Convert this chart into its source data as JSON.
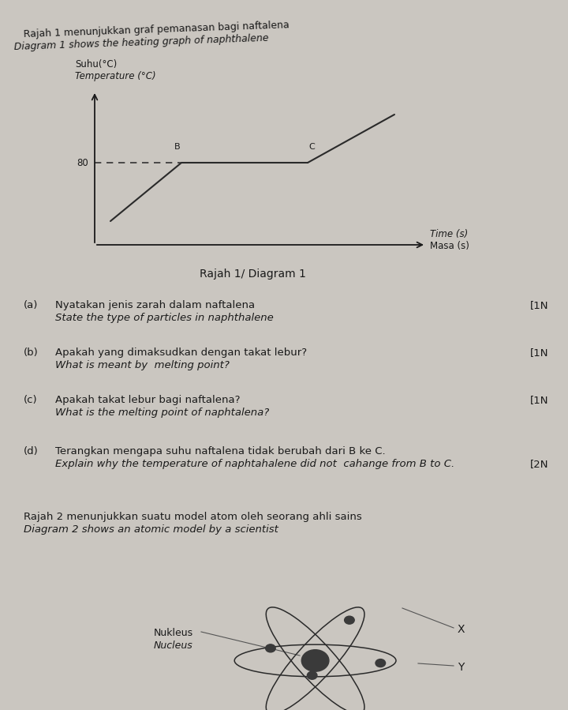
{
  "bg_color": "#cac6c0",
  "title_line1": "Rajah 1 menunjukkan graf pemanasan bagi naftalena",
  "title_line2": "Diagram 1 shows the heating graph of naphthalene",
  "ylabel_line1": "Suhu(°C)",
  "ylabel_line2": "Temperature (°C)",
  "xlabel_line1": "Masa (s)",
  "xlabel_line2": "Time (s)",
  "diagram_label": "Rajah 1/ Diagram 1",
  "y_tick_label": "80",
  "point_B_label": "B",
  "point_C_label": "C",
  "graph_color": "#2a2a2a",
  "questions": [
    {
      "label": "(a)",
      "q_malay": "Nyatakan jenis zarah dalam naftalena",
      "q_english": "State the type of particles in naphthalene",
      "mark": "[1N"
    },
    {
      "label": "(b)",
      "q_malay": "Apakah yang dimaksudkan dengan takat lebur?",
      "q_english": "What is meant by  melting point?",
      "mark": "[1N"
    },
    {
      "label": "(c)",
      "q_malay": "Apakah takat lebur bagi naftalena?",
      "q_english": "What is the melting point of naphtalena?",
      "mark": "[1N"
    },
    {
      "label": "(d)",
      "q_malay": "Terangkan mengapa suhu naftalena tidak berubah dari B ke C.",
      "q_english": "Explain why the temperature of naphtahalene did not  cahange from B to C.",
      "mark": "[2N"
    }
  ],
  "rajah2_line1": "Rajah 2 menunjukkan suatu model atom oleh seorang ahli sains",
  "rajah2_line2": "Diagram 2 shows an atomic model by a scientist",
  "nukleus_label": "Nukleus",
  "nucleus_label": "Nucleus",
  "X_label": "X",
  "Y_label": "Y"
}
